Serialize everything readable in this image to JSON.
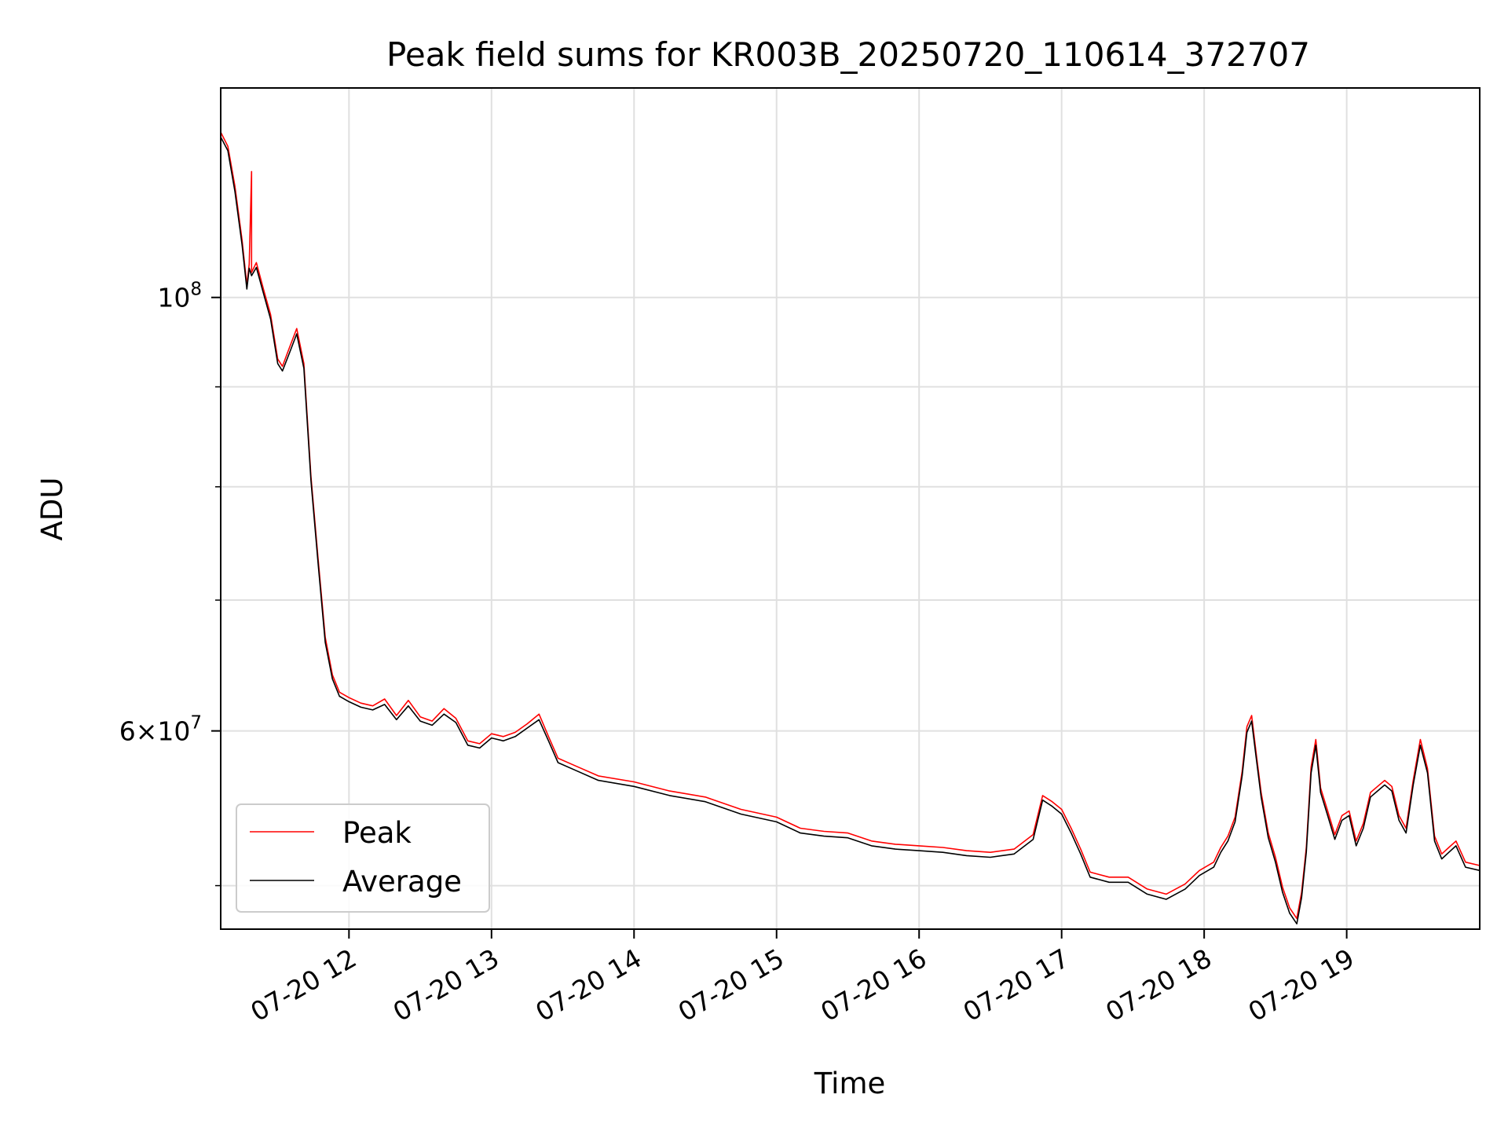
{
  "chart_data": {
    "type": "line",
    "title": "Peak field sums for KR003B_20250720_110614_372707",
    "xlabel": "Time",
    "ylabel": "ADU",
    "y_scale": "log",
    "xlim": [
      "2025-07-20 11:06",
      "2025-07-20 19:56"
    ],
    "ylim": [
      47500000,
      128000000
    ],
    "grid": true,
    "legend_position": "lower-left",
    "x_ticks": [
      {
        "t": "2025-07-20 12:00",
        "label": "07-20 12"
      },
      {
        "t": "2025-07-20 13:00",
        "label": "07-20 13"
      },
      {
        "t": "2025-07-20 14:00",
        "label": "07-20 14"
      },
      {
        "t": "2025-07-20 15:00",
        "label": "07-20 15"
      },
      {
        "t": "2025-07-20 16:00",
        "label": "07-20 16"
      },
      {
        "t": "2025-07-20 17:00",
        "label": "07-20 17"
      },
      {
        "t": "2025-07-20 18:00",
        "label": "07-20 18"
      },
      {
        "t": "2025-07-20 19:00",
        "label": "07-20 19"
      }
    ],
    "y_major_ticks": [
      {
        "value": 60000000,
        "label_mantissa": "6",
        "label_times": "×",
        "label_base": "10",
        "label_exp": "7"
      },
      {
        "value": 100000000,
        "label_mantissa": "",
        "label_times": "",
        "label_base": "10",
        "label_exp": "8"
      }
    ],
    "y_minor_ticks": [
      50000000,
      70000000,
      80000000,
      90000000
    ],
    "series": [
      {
        "name": "Peak",
        "color": "#ff0000",
        "points": [
          [
            "2025-07-20 11:06",
            121500000
          ],
          [
            "2025-07-20 11:09",
            119500000
          ],
          [
            "2025-07-20 11:12",
            114000000
          ],
          [
            "2025-07-20 11:15",
            107000000
          ],
          [
            "2025-07-20 11:17",
            101500000
          ],
          [
            "2025-07-20 11:18",
            104000000
          ],
          [
            "2025-07-20 11:19",
            116000000
          ],
          [
            "2025-07-20 11:19",
            103000000
          ],
          [
            "2025-07-20 11:21",
            104200000
          ],
          [
            "2025-07-20 11:24",
            101000000
          ],
          [
            "2025-07-20 11:27",
            98000000
          ],
          [
            "2025-07-20 11:30",
            93000000
          ],
          [
            "2025-07-20 11:32",
            92200000
          ],
          [
            "2025-07-20 11:35",
            94300000
          ],
          [
            "2025-07-20 11:38",
            96400000
          ],
          [
            "2025-07-20 11:41",
            92500000
          ],
          [
            "2025-07-20 11:44",
            81000000
          ],
          [
            "2025-07-20 11:47",
            73500000
          ],
          [
            "2025-07-20 11:50",
            67000000
          ],
          [
            "2025-07-20 11:53",
            64100000
          ],
          [
            "2025-07-20 11:56",
            62800000
          ],
          [
            "2025-07-20 12:00",
            62400000
          ],
          [
            "2025-07-20 12:05",
            62000000
          ],
          [
            "2025-07-20 12:10",
            61800000
          ],
          [
            "2025-07-20 12:15",
            62300000
          ],
          [
            "2025-07-20 12:20",
            61100000
          ],
          [
            "2025-07-20 12:25",
            62200000
          ],
          [
            "2025-07-20 12:30",
            61000000
          ],
          [
            "2025-07-20 12:35",
            60700000
          ],
          [
            "2025-07-20 12:40",
            61600000
          ],
          [
            "2025-07-20 12:45",
            60900000
          ],
          [
            "2025-07-20 12:50",
            59300000
          ],
          [
            "2025-07-20 12:55",
            59100000
          ],
          [
            "2025-07-20 13:00",
            59800000
          ],
          [
            "2025-07-20 13:05",
            59600000
          ],
          [
            "2025-07-20 13:10",
            59900000
          ],
          [
            "2025-07-20 13:15",
            60500000
          ],
          [
            "2025-07-20 13:20",
            61200000
          ],
          [
            "2025-07-20 13:24",
            59600000
          ],
          [
            "2025-07-20 13:28",
            58100000
          ],
          [
            "2025-07-20 13:35",
            57600000
          ],
          [
            "2025-07-20 13:45",
            56900000
          ],
          [
            "2025-07-20 14:00",
            56500000
          ],
          [
            "2025-07-20 14:15",
            55900000
          ],
          [
            "2025-07-20 14:30",
            55500000
          ],
          [
            "2025-07-20 14:45",
            54700000
          ],
          [
            "2025-07-20 15:00",
            54200000
          ],
          [
            "2025-07-20 15:10",
            53500000
          ],
          [
            "2025-07-20 15:20",
            53300000
          ],
          [
            "2025-07-20 15:30",
            53200000
          ],
          [
            "2025-07-20 15:40",
            52700000
          ],
          [
            "2025-07-20 15:50",
            52500000
          ],
          [
            "2025-07-20 16:00",
            52400000
          ],
          [
            "2025-07-20 16:10",
            52300000
          ],
          [
            "2025-07-20 16:20",
            52100000
          ],
          [
            "2025-07-20 16:30",
            52000000
          ],
          [
            "2025-07-20 16:40",
            52200000
          ],
          [
            "2025-07-20 16:48",
            53100000
          ],
          [
            "2025-07-20 16:52",
            55600000
          ],
          [
            "2025-07-20 16:56",
            55200000
          ],
          [
            "2025-07-20 17:00",
            54700000
          ],
          [
            "2025-07-20 17:04",
            53500000
          ],
          [
            "2025-07-20 17:08",
            52200000
          ],
          [
            "2025-07-20 17:12",
            50800000
          ],
          [
            "2025-07-20 17:20",
            50500000
          ],
          [
            "2025-07-20 17:28",
            50500000
          ],
          [
            "2025-07-20 17:36",
            49800000
          ],
          [
            "2025-07-20 17:44",
            49500000
          ],
          [
            "2025-07-20 17:52",
            50100000
          ],
          [
            "2025-07-20 17:58",
            50900000
          ],
          [
            "2025-07-20 18:04",
            51400000
          ],
          [
            "2025-07-20 18:07",
            52300000
          ],
          [
            "2025-07-20 18:10",
            53000000
          ],
          [
            "2025-07-20 18:13",
            54200000
          ],
          [
            "2025-07-20 18:16",
            57200000
          ],
          [
            "2025-07-20 18:18",
            60300000
          ],
          [
            "2025-07-20 18:20",
            61100000
          ],
          [
            "2025-07-20 18:22",
            58300000
          ],
          [
            "2025-07-20 18:24",
            55800000
          ],
          [
            "2025-07-20 18:27",
            53200000
          ],
          [
            "2025-07-20 18:30",
            51700000
          ],
          [
            "2025-07-20 18:33",
            49900000
          ],
          [
            "2025-07-20 18:36",
            48700000
          ],
          [
            "2025-07-20 18:39",
            48100000
          ],
          [
            "2025-07-20 18:41",
            49600000
          ],
          [
            "2025-07-20 18:43",
            52300000
          ],
          [
            "2025-07-20 18:45",
            57500000
          ],
          [
            "2025-07-20 18:47",
            59400000
          ],
          [
            "2025-07-20 18:49",
            56100000
          ],
          [
            "2025-07-20 18:52",
            54600000
          ],
          [
            "2025-07-20 18:55",
            53100000
          ],
          [
            "2025-07-20 18:58",
            54300000
          ],
          [
            "2025-07-20 19:01",
            54600000
          ],
          [
            "2025-07-20 19:04",
            52700000
          ],
          [
            "2025-07-20 19:07",
            53800000
          ],
          [
            "2025-07-20 19:10",
            55800000
          ],
          [
            "2025-07-20 19:13",
            56200000
          ],
          [
            "2025-07-20 19:16",
            56600000
          ],
          [
            "2025-07-20 19:19",
            56200000
          ],
          [
            "2025-07-20 19:22",
            54300000
          ],
          [
            "2025-07-20 19:25",
            53500000
          ],
          [
            "2025-07-20 19:28",
            56600000
          ],
          [
            "2025-07-20 19:31",
            59400000
          ],
          [
            "2025-07-20 19:34",
            57400000
          ],
          [
            "2025-07-20 19:37",
            53000000
          ],
          [
            "2025-07-20 19:40",
            51900000
          ],
          [
            "2025-07-20 19:43",
            52300000
          ],
          [
            "2025-07-20 19:46",
            52700000
          ],
          [
            "2025-07-20 19:50",
            51400000
          ],
          [
            "2025-07-20 19:56",
            51200000
          ]
        ]
      },
      {
        "name": "Average",
        "color": "#000000",
        "points": [
          [
            "2025-07-20 11:06",
            120800000
          ],
          [
            "2025-07-20 11:09",
            118900000
          ],
          [
            "2025-07-20 11:12",
            113300000
          ],
          [
            "2025-07-20 11:15",
            106400000
          ],
          [
            "2025-07-20 11:17",
            101000000
          ],
          [
            "2025-07-20 11:18",
            103500000
          ],
          [
            "2025-07-20 11:19",
            102600000
          ],
          [
            "2025-07-20 11:21",
            103600000
          ],
          [
            "2025-07-20 11:24",
            100500000
          ],
          [
            "2025-07-20 11:27",
            97500000
          ],
          [
            "2025-07-20 11:30",
            92500000
          ],
          [
            "2025-07-20 11:32",
            91700000
          ],
          [
            "2025-07-20 11:35",
            93700000
          ],
          [
            "2025-07-20 11:38",
            95800000
          ],
          [
            "2025-07-20 11:41",
            92000000
          ],
          [
            "2025-07-20 11:44",
            80600000
          ],
          [
            "2025-07-20 11:47",
            73100000
          ],
          [
            "2025-07-20 11:50",
            66600000
          ],
          [
            "2025-07-20 11:53",
            63800000
          ],
          [
            "2025-07-20 11:56",
            62500000
          ],
          [
            "2025-07-20 12:00",
            62100000
          ],
          [
            "2025-07-20 12:05",
            61700000
          ],
          [
            "2025-07-20 12:10",
            61500000
          ],
          [
            "2025-07-20 12:15",
            61900000
          ],
          [
            "2025-07-20 12:20",
            60800000
          ],
          [
            "2025-07-20 12:25",
            61800000
          ],
          [
            "2025-07-20 12:30",
            60700000
          ],
          [
            "2025-07-20 12:35",
            60400000
          ],
          [
            "2025-07-20 12:40",
            61200000
          ],
          [
            "2025-07-20 12:45",
            60600000
          ],
          [
            "2025-07-20 12:50",
            59000000
          ],
          [
            "2025-07-20 12:55",
            58800000
          ],
          [
            "2025-07-20 13:00",
            59500000
          ],
          [
            "2025-07-20 13:05",
            59300000
          ],
          [
            "2025-07-20 13:10",
            59600000
          ],
          [
            "2025-07-20 13:15",
            60200000
          ],
          [
            "2025-07-20 13:20",
            60800000
          ],
          [
            "2025-07-20 13:24",
            59300000
          ],
          [
            "2025-07-20 13:28",
            57800000
          ],
          [
            "2025-07-20 13:35",
            57300000
          ],
          [
            "2025-07-20 13:45",
            56600000
          ],
          [
            "2025-07-20 14:00",
            56200000
          ],
          [
            "2025-07-20 14:15",
            55600000
          ],
          [
            "2025-07-20 14:30",
            55200000
          ],
          [
            "2025-07-20 14:45",
            54400000
          ],
          [
            "2025-07-20 15:00",
            53900000
          ],
          [
            "2025-07-20 15:10",
            53200000
          ],
          [
            "2025-07-20 15:20",
            53000000
          ],
          [
            "2025-07-20 15:30",
            52900000
          ],
          [
            "2025-07-20 15:40",
            52400000
          ],
          [
            "2025-07-20 15:50",
            52200000
          ],
          [
            "2025-07-20 16:00",
            52100000
          ],
          [
            "2025-07-20 16:10",
            52000000
          ],
          [
            "2025-07-20 16:20",
            51800000
          ],
          [
            "2025-07-20 16:30",
            51700000
          ],
          [
            "2025-07-20 16:40",
            51900000
          ],
          [
            "2025-07-20 16:48",
            52800000
          ],
          [
            "2025-07-20 16:52",
            55300000
          ],
          [
            "2025-07-20 16:56",
            54900000
          ],
          [
            "2025-07-20 17:00",
            54400000
          ],
          [
            "2025-07-20 17:04",
            53200000
          ],
          [
            "2025-07-20 17:08",
            51900000
          ],
          [
            "2025-07-20 17:12",
            50500000
          ],
          [
            "2025-07-20 17:20",
            50200000
          ],
          [
            "2025-07-20 17:28",
            50200000
          ],
          [
            "2025-07-20 17:36",
            49500000
          ],
          [
            "2025-07-20 17:44",
            49200000
          ],
          [
            "2025-07-20 17:52",
            49800000
          ],
          [
            "2025-07-20 17:58",
            50600000
          ],
          [
            "2025-07-20 18:04",
            51100000
          ],
          [
            "2025-07-20 18:07",
            52000000
          ],
          [
            "2025-07-20 18:10",
            52700000
          ],
          [
            "2025-07-20 18:13",
            53900000
          ],
          [
            "2025-07-20 18:16",
            56900000
          ],
          [
            "2025-07-20 18:18",
            59900000
          ],
          [
            "2025-07-20 18:20",
            60700000
          ],
          [
            "2025-07-20 18:22",
            58000000
          ],
          [
            "2025-07-20 18:24",
            55500000
          ],
          [
            "2025-07-20 18:27",
            52900000
          ],
          [
            "2025-07-20 18:30",
            51400000
          ],
          [
            "2025-07-20 18:33",
            49600000
          ],
          [
            "2025-07-20 18:36",
            48400000
          ],
          [
            "2025-07-20 18:39",
            47800000
          ],
          [
            "2025-07-20 18:41",
            49300000
          ],
          [
            "2025-07-20 18:43",
            52000000
          ],
          [
            "2025-07-20 18:45",
            57100000
          ],
          [
            "2025-07-20 18:47",
            59000000
          ],
          [
            "2025-07-20 18:49",
            55800000
          ],
          [
            "2025-07-20 18:52",
            54300000
          ],
          [
            "2025-07-20 18:55",
            52800000
          ],
          [
            "2025-07-20 18:58",
            54000000
          ],
          [
            "2025-07-20 19:01",
            54300000
          ],
          [
            "2025-07-20 19:04",
            52400000
          ],
          [
            "2025-07-20 19:07",
            53500000
          ],
          [
            "2025-07-20 19:10",
            55500000
          ],
          [
            "2025-07-20 19:13",
            55900000
          ],
          [
            "2025-07-20 19:16",
            56300000
          ],
          [
            "2025-07-20 19:19",
            55900000
          ],
          [
            "2025-07-20 19:22",
            54000000
          ],
          [
            "2025-07-20 19:25",
            53200000
          ],
          [
            "2025-07-20 19:28",
            56300000
          ],
          [
            "2025-07-20 19:31",
            59000000
          ],
          [
            "2025-07-20 19:34",
            57100000
          ],
          [
            "2025-07-20 19:37",
            52700000
          ],
          [
            "2025-07-20 19:40",
            51600000
          ],
          [
            "2025-07-20 19:43",
            52000000
          ],
          [
            "2025-07-20 19:46",
            52400000
          ],
          [
            "2025-07-20 19:50",
            51100000
          ],
          [
            "2025-07-20 19:56",
            50900000
          ]
        ]
      }
    ]
  }
}
